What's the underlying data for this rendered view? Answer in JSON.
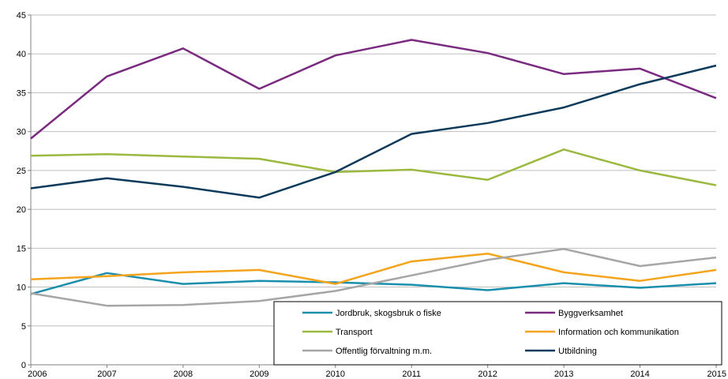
{
  "chart_data": {
    "type": "line",
    "title": "",
    "xlabel": "",
    "ylabel": "",
    "x": [
      "2006",
      "2007",
      "2008",
      "2009",
      "2010",
      "2011",
      "2012",
      "2013",
      "2014",
      "2015"
    ],
    "ylim": [
      0,
      45
    ],
    "yticks": [
      0,
      5,
      10,
      15,
      20,
      25,
      30,
      35,
      40,
      45
    ],
    "grid": true,
    "legend_position": "bottom-right inside plot",
    "series": [
      {
        "name": "Jordbruk, skogsbruk o fiske",
        "color": "#1a8fad",
        "values": [
          9.1,
          11.8,
          10.4,
          10.8,
          10.6,
          10.3,
          9.6,
          10.5,
          9.9,
          10.5
        ]
      },
      {
        "name": "Byggverksamhet",
        "color": "#7a2a80",
        "values": [
          29.1,
          37.1,
          40.7,
          35.5,
          39.8,
          41.8,
          40.1,
          37.4,
          38.1,
          34.3
        ]
      },
      {
        "name": "Transport",
        "color": "#9bb83f",
        "values": [
          26.9,
          27.1,
          26.8,
          26.5,
          24.8,
          25.1,
          23.8,
          27.7,
          25.0,
          23.1
        ]
      },
      {
        "name": "Information och kommunikation",
        "color": "#f4a41c",
        "values": [
          11.0,
          11.4,
          11.9,
          12.2,
          10.4,
          13.3,
          14.3,
          11.9,
          10.8,
          12.2
        ]
      },
      {
        "name": "Offentlig förvaltning m.m.",
        "color": "#a6a6a6",
        "values": [
          9.2,
          7.6,
          7.7,
          8.2,
          9.5,
          11.5,
          13.5,
          14.9,
          12.7,
          13.8
        ]
      },
      {
        "name": "Utbildning",
        "color": "#0c3a5a",
        "values": [
          22.7,
          24.0,
          22.9,
          21.5,
          24.8,
          29.7,
          31.1,
          33.1,
          36.1,
          38.5
        ]
      }
    ]
  }
}
